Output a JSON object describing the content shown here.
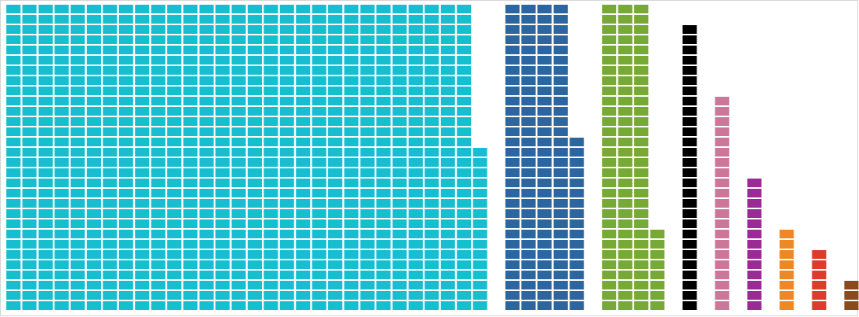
{
  "chart_data": {
    "type": "waffle",
    "series": [
      {
        "color": "#17becf",
        "values": [
          886
        ]
      },
      {
        "color": "#2b66a0",
        "values": [
          137
        ]
      },
      {
        "color": "#77a935",
        "values": [
          98
        ]
      },
      {
        "color": "#000000",
        "values": [
          28
        ]
      },
      {
        "color": "#cc7799",
        "values": [
          21
        ]
      },
      {
        "color": "#9a2a96",
        "values": [
          13
        ]
      },
      {
        "color": "#ee8822",
        "values": [
          8
        ]
      },
      {
        "color": "#dd3b2c",
        "values": [
          6
        ]
      },
      {
        "color": "#8b4a1c",
        "values": [
          3
        ]
      }
    ]
  }
}
